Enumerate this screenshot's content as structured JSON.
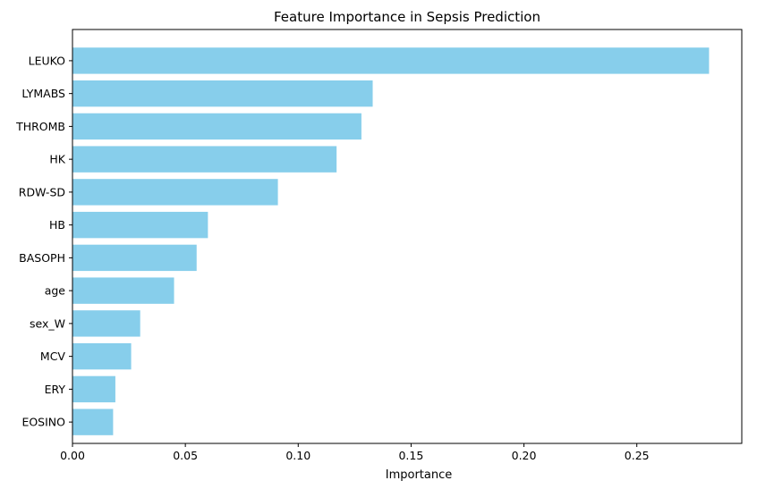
{
  "chart_data": {
    "type": "bar",
    "orientation": "horizontal",
    "title": "Feature Importance in Sepsis Prediction",
    "xlabel": "Importance",
    "ylabel": "",
    "categories": [
      "LEUKO",
      "LYMABS",
      "THROMB",
      "HK",
      "RDW-SD",
      "HB",
      "BASOPH",
      "age",
      "sex_W",
      "MCV",
      "ERY",
      "EOSINO"
    ],
    "values": [
      0.282,
      0.133,
      0.128,
      0.117,
      0.091,
      0.06,
      0.055,
      0.045,
      0.03,
      0.026,
      0.019,
      0.018
    ],
    "xlim": [
      0,
      0.2965
    ],
    "xticks": [
      0.0,
      0.05,
      0.1,
      0.15,
      0.2,
      0.25
    ],
    "xtick_labels": [
      "0.00",
      "0.05",
      "0.10",
      "0.15",
      "0.20",
      "0.25"
    ],
    "bar_color": "#87CEEB",
    "grid": false,
    "legend": "none"
  }
}
